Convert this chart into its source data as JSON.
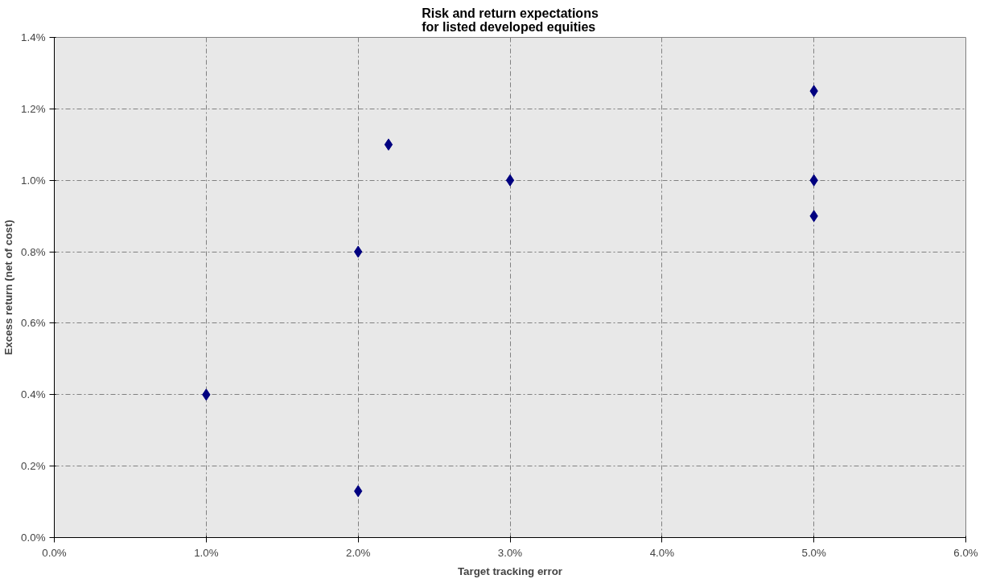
{
  "chart_data": {
    "type": "scatter",
    "title": "Risk and return expectations\nfor listed developed equities",
    "xlabel": "Target tracking error",
    "ylabel": "Excess return (net of cost)",
    "x": [
      1.0,
      2.0,
      2.0,
      2.2,
      3.0,
      5.0,
      5.0,
      5.0
    ],
    "series": [
      {
        "color": "#000080",
        "values": [
          0.4,
          0.13,
          0.8,
          1.1,
          1.0,
          1.25,
          1.0,
          0.9
        ]
      }
    ],
    "xlim": [
      0,
      6
    ],
    "ylim": [
      0,
      1.4
    ],
    "xticks": [
      {
        "value": 0,
        "label": "0.0%"
      },
      {
        "value": 1,
        "label": "1.0%"
      },
      {
        "value": 2,
        "label": "2.0%"
      },
      {
        "value": 3,
        "label": "3.0%"
      },
      {
        "value": 4,
        "label": "4.0%"
      },
      {
        "value": 5,
        "label": "5.0%"
      },
      {
        "value": 6,
        "label": "6.0%"
      }
    ],
    "yticks": [
      {
        "value": 0,
        "label": "0.0%"
      },
      {
        "value": 0.2,
        "label": "0.2%"
      },
      {
        "value": 0.4,
        "label": "0.4%"
      },
      {
        "value": 0.6,
        "label": "0.6%"
      },
      {
        "value": 0.8,
        "label": "0.8%"
      },
      {
        "value": 1.0,
        "label": "1.0%"
      },
      {
        "value": 1.2,
        "label": "1.2%"
      },
      {
        "value": 1.4,
        "label": "1.4%"
      }
    ],
    "grid": true,
    "marker": "diamond"
  }
}
